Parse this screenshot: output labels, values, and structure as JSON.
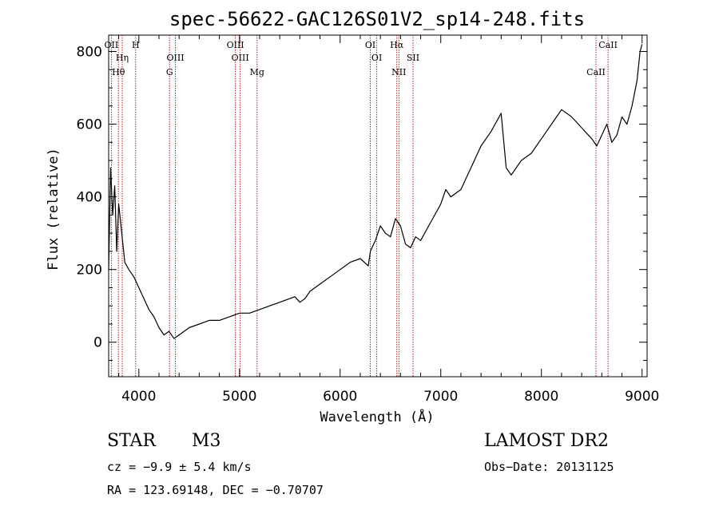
{
  "chart_data": {
    "type": "line",
    "title": "spec-56622-GAC126S01V2_sp14-248.fits",
    "xlabel": "Wavelength (Å)",
    "ylabel": "Flux (relative)",
    "xlim": [
      3700,
      9050
    ],
    "ylim": [
      -95,
      845
    ],
    "x_ticks": [
      4000,
      5000,
      6000,
      7000,
      8000,
      9000
    ],
    "x_tick_labels": [
      "4000",
      "5000",
      "6000",
      "7000",
      "8000",
      "9000"
    ],
    "y_ticks": [
      0,
      200,
      400,
      600,
      800
    ],
    "y_tick_labels": [
      "0",
      "200",
      "400",
      "600",
      "800"
    ],
    "grid": false,
    "series": [
      {
        "color": "#000000",
        "x": [
          3700,
          3720,
          3740,
          3760,
          3780,
          3800,
          3830,
          3860,
          3900,
          3950,
          4000,
          4050,
          4100,
          4150,
          4200,
          4250,
          4300,
          4350,
          4400,
          4450,
          4500,
          4600,
          4700,
          4800,
          4900,
          5000,
          5100,
          5200,
          5300,
          5400,
          5500,
          5550,
          5600,
          5650,
          5700,
          5800,
          5900,
          6000,
          6100,
          6200,
          6280,
          6300,
          6350,
          6400,
          6450,
          6500,
          6550,
          6600,
          6650,
          6700,
          6750,
          6800,
          6900,
          7000,
          7050,
          7100,
          7200,
          7300,
          7400,
          7500,
          7600,
          7650,
          7700,
          7800,
          7900,
          8000,
          8100,
          8200,
          8300,
          8400,
          8500,
          8550,
          8600,
          8650,
          8700,
          8750,
          8800,
          8850,
          8900,
          8950,
          8980,
          9000
        ],
        "y": [
          200,
          480,
          350,
          430,
          250,
          380,
          300,
          220,
          200,
          180,
          150,
          120,
          90,
          70,
          40,
          20,
          30,
          10,
          20,
          30,
          40,
          50,
          60,
          60,
          70,
          80,
          80,
          90,
          100,
          110,
          120,
          125,
          110,
          120,
          140,
          160,
          180,
          200,
          220,
          230,
          210,
          250,
          280,
          320,
          300,
          290,
          340,
          320,
          270,
          260,
          290,
          280,
          330,
          380,
          420,
          400,
          420,
          480,
          540,
          580,
          630,
          480,
          460,
          500,
          520,
          560,
          600,
          640,
          620,
          590,
          560,
          540,
          570,
          600,
          550,
          570,
          620,
          600,
          650,
          720,
          800,
          820
        ]
      }
    ],
    "spectral_lines": [
      {
        "label": "OII",
        "wavelength": 3727
      },
      {
        "label": "Hη",
        "wavelength": 3835
      },
      {
        "label": "Hθ",
        "wavelength": 3797
      },
      {
        "label": "H",
        "wavelength": 3968
      },
      {
        "label": "OIII",
        "wavelength": 4363
      },
      {
        "label": "G",
        "wavelength": 4305
      },
      {
        "label": "OIII",
        "wavelength": 4959
      },
      {
        "label": "OIII",
        "wavelength": 5007
      },
      {
        "label": "Mg",
        "wavelength": 5175
      },
      {
        "label": "OI",
        "wavelength": 6300
      },
      {
        "label": "OI",
        "wavelength": 6364
      },
      {
        "label": "NII",
        "wavelength": 6584
      },
      {
        "label": "Hα",
        "wavelength": 6563
      },
      {
        "label": "SII",
        "wavelength": 6724
      },
      {
        "label": "CaII",
        "wavelength": 8542
      },
      {
        "label": "CaII",
        "wavelength": 8662
      }
    ],
    "line_color": "#b22222"
  },
  "info": {
    "object_type": "STAR",
    "subclass": "M3",
    "survey": "LAMOST DR2",
    "cz": "cz = −9.9 ± 5.4 km/s",
    "obs_date": "Obs−Date: 20131125",
    "coords": "RA = 123.69148, DEC =  −0.70707"
  }
}
